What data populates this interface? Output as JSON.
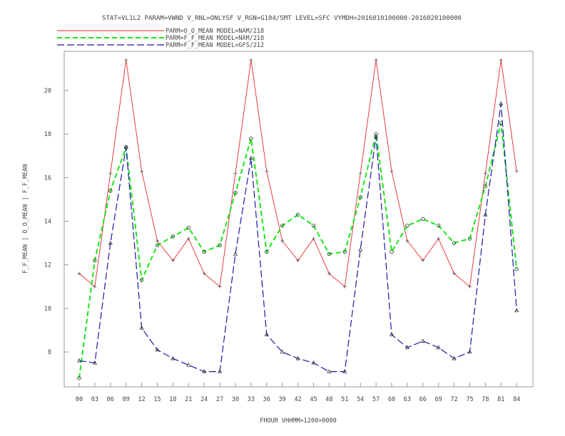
{
  "title": "STAT=VL1L2 PARAM=VWND V_RNL=ONLYSF V_RGN=G104/SMT LEVEL=SFC VYMDH=2016010100000-2016020100000",
  "chart_data": {
    "type": "line",
    "title": "STAT=VL1L2 PARAM=VWND V_RNL=ONLYSF V_RGN=G104/SMT LEVEL=SFC VYMDH=2016010100000-2016020100000",
    "xlabel": "FHOUR VHHMM=1200>0000",
    "ylabel": "F_F_MEAN | O_O_MEAN | F_F_MEAN",
    "categories": [
      "00",
      "03",
      "06",
      "09",
      "12",
      "15",
      "18",
      "21",
      "24",
      "27",
      "30",
      "33",
      "36",
      "39",
      "42",
      "45",
      "48",
      "51",
      "54",
      "57",
      "60",
      "63",
      "66",
      "69",
      "72",
      "75",
      "78",
      "81",
      "84"
    ],
    "y_ticks": [
      "8",
      "10",
      "12",
      "14",
      "16",
      "18",
      "20"
    ],
    "ylim": [
      6.4,
      21.8
    ],
    "grid": false,
    "legend_position": "top-left",
    "series": [
      {
        "name": "PARM=O_O_MEAN MODEL=NAM/218",
        "color": "#e8262a",
        "dash": "solid",
        "marker": "plus",
        "values": [
          11.6,
          11.0,
          16.2,
          21.4,
          16.3,
          13.1,
          12.2,
          13.2,
          11.6,
          11.0,
          16.2,
          21.4,
          16.3,
          13.1,
          12.2,
          13.2,
          11.6,
          11.0,
          16.2,
          21.4,
          16.3,
          13.1,
          12.2,
          13.2,
          11.6,
          11.0,
          16.2,
          21.4,
          16.3
        ]
      },
      {
        "name": "PARM=F_F_MEAN MODEL=NAM/218",
        "color": "#19e619",
        "dash": "long",
        "marker": "circle",
        "values": [
          6.8,
          12.2,
          15.4,
          17.4,
          11.3,
          12.9,
          13.3,
          13.7,
          12.6,
          12.9,
          15.3,
          17.8,
          12.6,
          13.8,
          14.3,
          13.8,
          12.5,
          12.6,
          15.1,
          18.0,
          12.6,
          13.8,
          14.1,
          13.8,
          13.0,
          13.2,
          15.6,
          18.5,
          11.8
        ]
      },
      {
        "name": "PARM=F_F_MEAN MODEL=GFS/212",
        "color": "#1a1aa8",
        "dash": "long",
        "marker": "triangle",
        "values": [
          7.6,
          7.5,
          13.0,
          17.4,
          9.1,
          8.1,
          7.7,
          7.4,
          7.1,
          7.1,
          12.5,
          16.9,
          8.8,
          8.0,
          7.7,
          7.5,
          7.1,
          7.1,
          12.7,
          17.9,
          8.8,
          8.2,
          8.5,
          8.2,
          7.7,
          8.0,
          14.3,
          19.4,
          9.9
        ]
      }
    ]
  }
}
